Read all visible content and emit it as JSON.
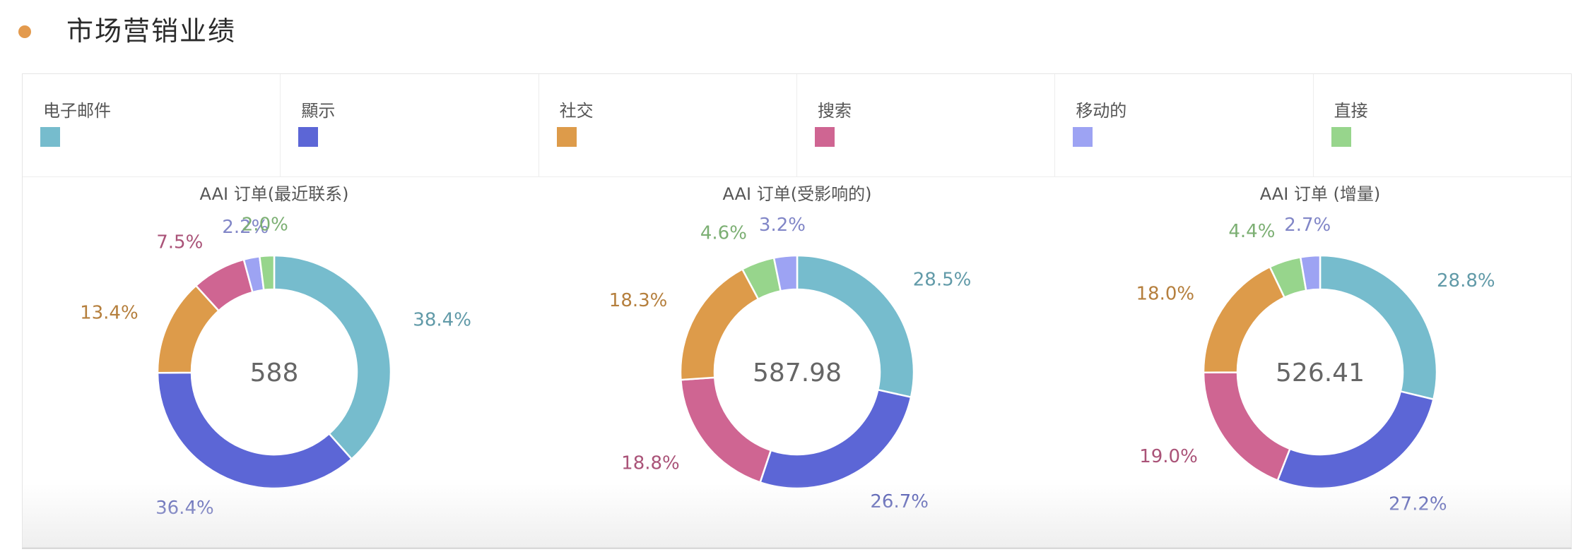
{
  "header": {
    "title": "市场营销业绩",
    "dot_color": "#e39a4d"
  },
  "legend": [
    {
      "label": "电子邮件",
      "color": "#76bccd",
      "key": "email"
    },
    {
      "label": "顯示",
      "color": "#5c66d6",
      "key": "display"
    },
    {
      "label": "社交",
      "color": "#dd9b4a",
      "key": "social"
    },
    {
      "label": "搜索",
      "color": "#cf6592",
      "key": "search"
    },
    {
      "label": "移动的",
      "color": "#9da3f3",
      "key": "mobile"
    },
    {
      "label": "直接",
      "color": "#97d58c",
      "key": "direct"
    }
  ],
  "chart_data": [
    {
      "type": "pie",
      "title": "AAI 订单(最近联系)",
      "center_label": "588",
      "categories": [
        "电子邮件",
        "顯示",
        "社交",
        "搜索",
        "移动的",
        "直接"
      ],
      "values": [
        38.4,
        36.4,
        13.4,
        7.5,
        2.2,
        2.0
      ],
      "data_labels": [
        "38.4%",
        "36.4%",
        "13.4%",
        "7.5%",
        "2.2%",
        "2.0%"
      ]
    },
    {
      "type": "pie",
      "title": "AAI 订单(受影响的)",
      "center_label": "587.98",
      "categories": [
        "电子邮件",
        "顯示",
        "搜索",
        "社交",
        "直接",
        "移动的"
      ],
      "values": [
        28.5,
        26.7,
        18.8,
        18.3,
        4.6,
        3.2
      ],
      "data_labels": [
        "28.5%",
        "26.7%",
        "18.8%",
        "18.3%",
        "4.6%",
        "3.2%"
      ]
    },
    {
      "type": "pie",
      "title": "AAI 订单 (增量)",
      "center_label": "526.41",
      "categories": [
        "电子邮件",
        "顯示",
        "搜索",
        "社交",
        "直接",
        "移动的"
      ],
      "values": [
        28.8,
        27.2,
        19.0,
        18.0,
        4.4,
        2.7
      ],
      "data_labels": [
        "28.8%",
        "27.2%",
        "19.0%",
        "18.0%",
        "4.4%",
        "2.7%"
      ]
    }
  ]
}
